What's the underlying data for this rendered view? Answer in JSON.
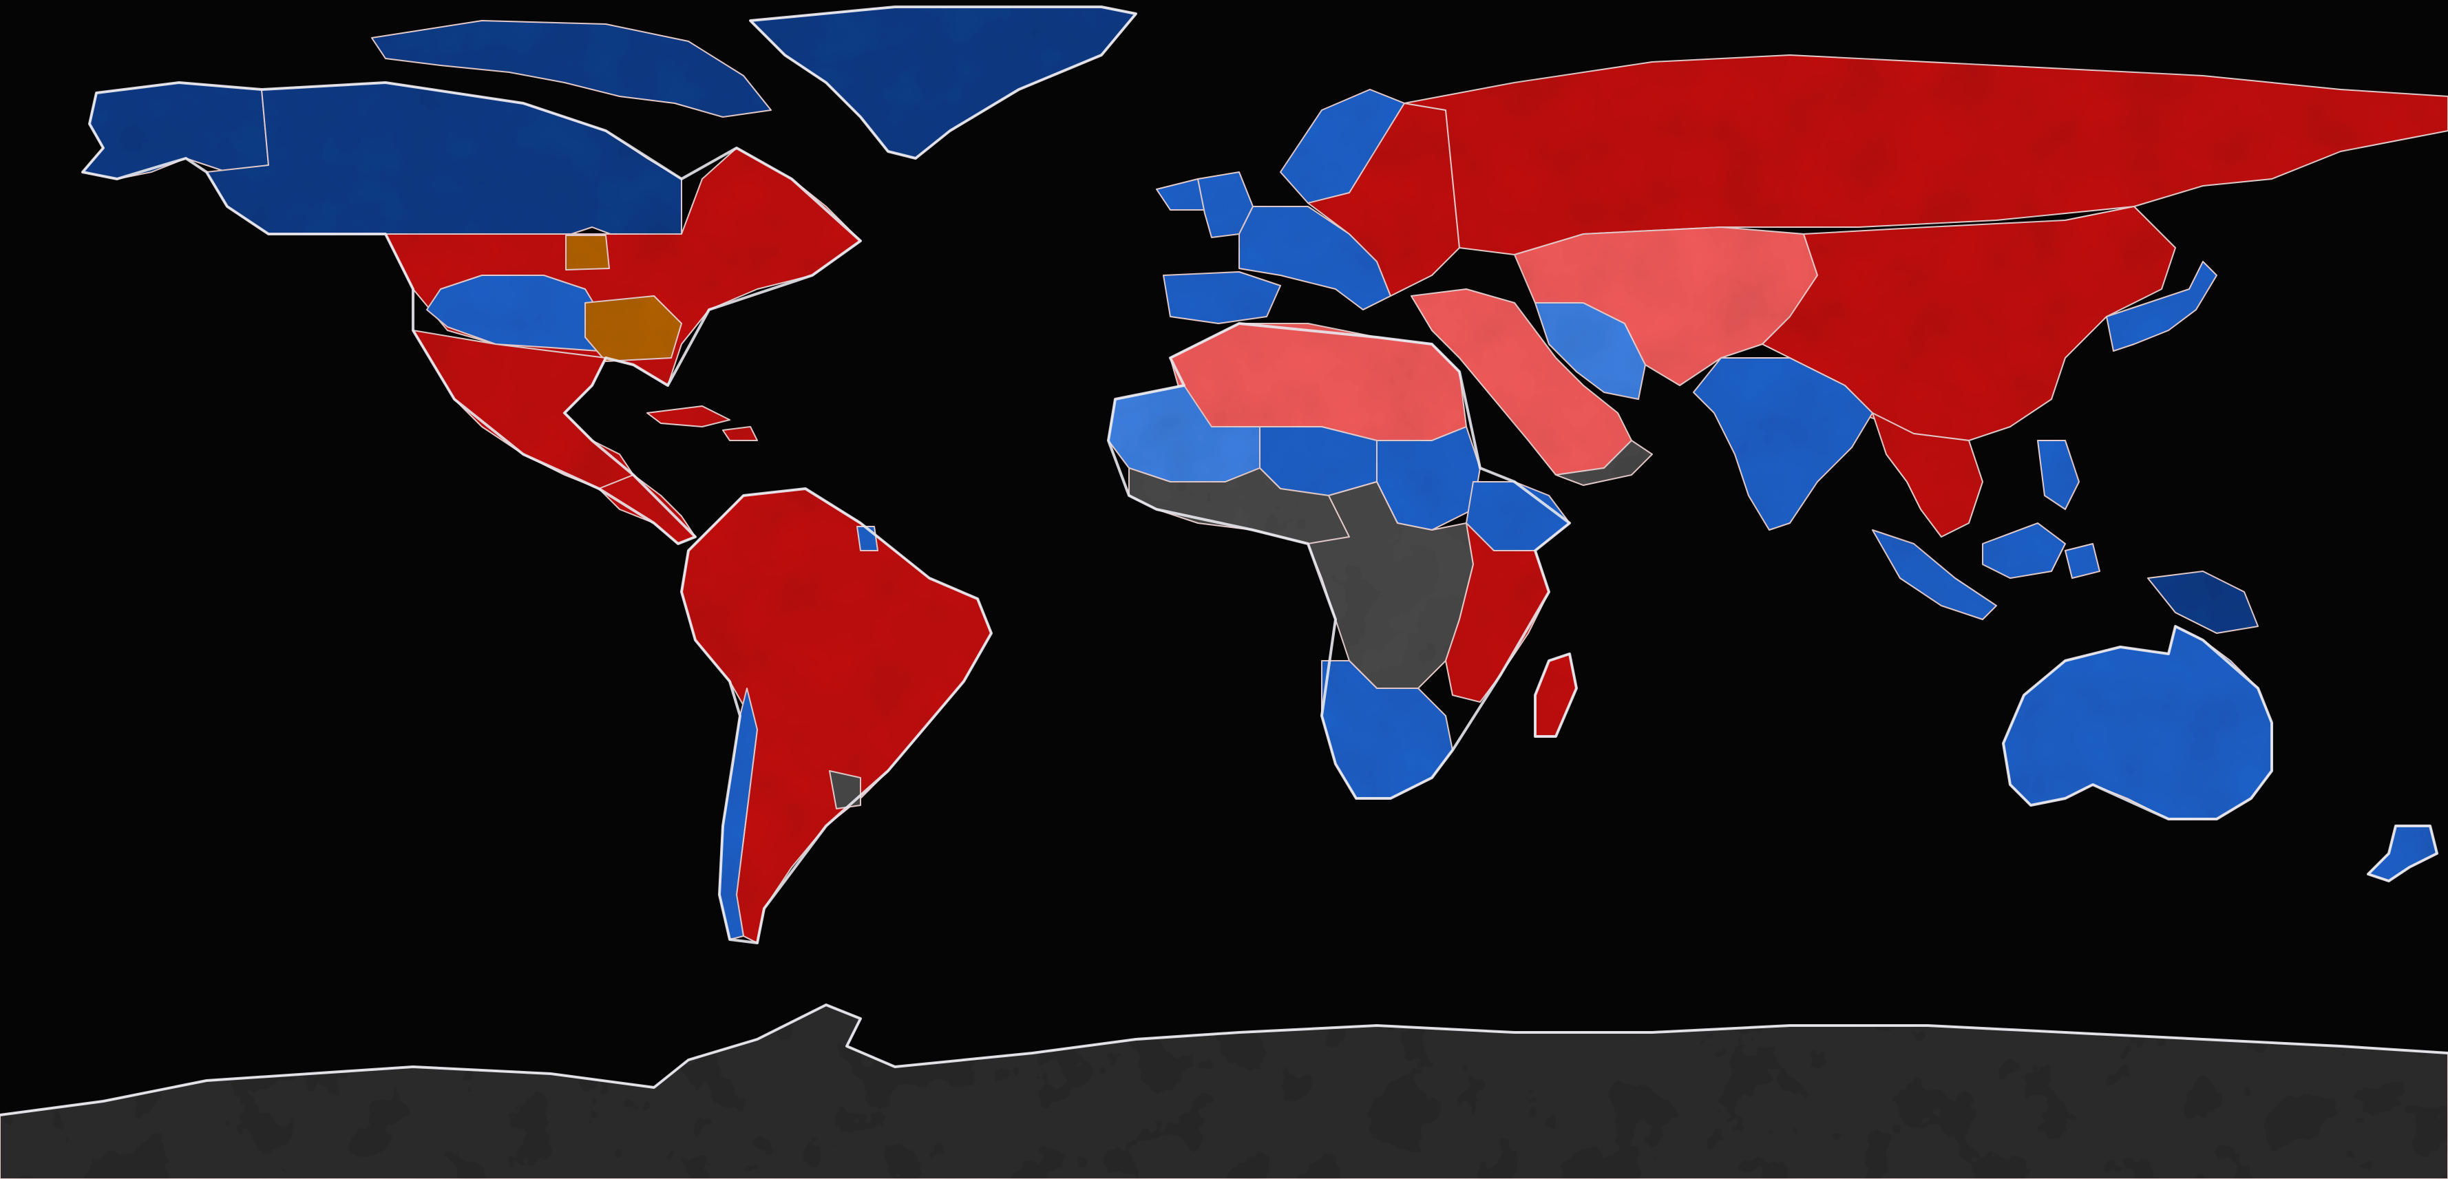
{
  "map": {
    "projection": "equirectangular",
    "background_color": "#050505",
    "land_base_color": "#2a2a2a",
    "category_colors": {
      "red": "#c01010",
      "light-red": "#f05a5a",
      "blue": "#1f60c8",
      "dark-blue": "#0d3b86",
      "light-blue": "#3c7fe0",
      "gray": "#484848",
      "orange": "#b06000",
      "antarctica": "#2b2b2b"
    },
    "regions": [
      {
        "name": "canada",
        "category": "dark-blue"
      },
      {
        "name": "greenland",
        "category": "dark-blue"
      },
      {
        "name": "alaska",
        "category": "dark-blue"
      },
      {
        "name": "arctic-islands",
        "category": "dark-blue"
      },
      {
        "name": "usa-east",
        "category": "red"
      },
      {
        "name": "usa-west-blue",
        "category": "blue"
      },
      {
        "name": "usa-orange-state-north",
        "category": "orange"
      },
      {
        "name": "usa-orange-state-south",
        "category": "orange"
      },
      {
        "name": "mexico",
        "category": "red"
      },
      {
        "name": "central-america",
        "category": "red"
      },
      {
        "name": "caribbean",
        "category": "red"
      },
      {
        "name": "south-america",
        "category": "red"
      },
      {
        "name": "chile",
        "category": "blue"
      },
      {
        "name": "uruguay",
        "category": "gray"
      },
      {
        "name": "guiana",
        "category": "blue"
      },
      {
        "name": "iceland",
        "category": "blue"
      },
      {
        "name": "british-isles",
        "category": "blue"
      },
      {
        "name": "iberia",
        "category": "blue"
      },
      {
        "name": "western-europe",
        "category": "blue"
      },
      {
        "name": "scandinavia",
        "category": "blue"
      },
      {
        "name": "eastern-europe",
        "category": "red"
      },
      {
        "name": "russia",
        "category": "red"
      },
      {
        "name": "middle-east",
        "category": "light-red"
      },
      {
        "name": "iran",
        "category": "light-blue"
      },
      {
        "name": "central-asia",
        "category": "light-red"
      },
      {
        "name": "china-mongolia",
        "category": "red"
      },
      {
        "name": "india",
        "category": "blue"
      },
      {
        "name": "southeast-asia",
        "category": "red"
      },
      {
        "name": "japan-korea",
        "category": "blue"
      },
      {
        "name": "indonesia",
        "category": "blue"
      },
      {
        "name": "philippines",
        "category": "blue"
      },
      {
        "name": "new-guinea",
        "category": "dark-blue"
      },
      {
        "name": "australia",
        "category": "blue"
      },
      {
        "name": "new-zealand",
        "category": "blue"
      },
      {
        "name": "north-africa",
        "category": "light-red"
      },
      {
        "name": "west-sahel",
        "category": "light-blue"
      },
      {
        "name": "niger-chad",
        "category": "blue"
      },
      {
        "name": "sudan",
        "category": "blue"
      },
      {
        "name": "ethiopia",
        "category": "blue"
      },
      {
        "name": "west-africa",
        "category": "gray"
      },
      {
        "name": "central-africa",
        "category": "gray"
      },
      {
        "name": "east-africa",
        "category": "red"
      },
      {
        "name": "southern-africa",
        "category": "blue"
      },
      {
        "name": "madagascar",
        "category": "red"
      },
      {
        "name": "arabian-peninsula-south",
        "category": "gray"
      },
      {
        "name": "antarctica",
        "category": "antarctica"
      }
    ]
  }
}
